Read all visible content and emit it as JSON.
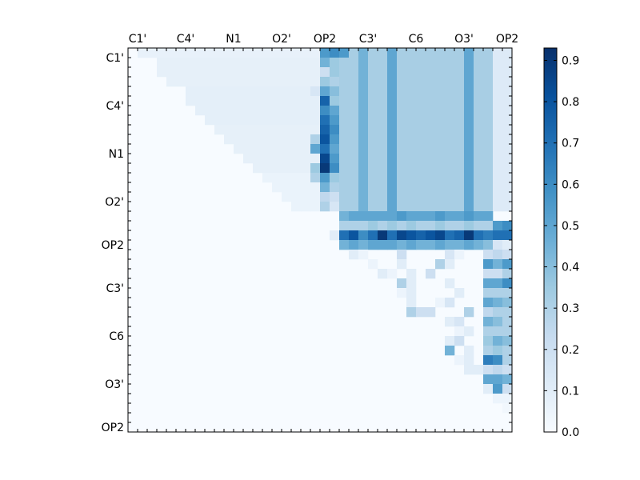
{
  "chart_data": {
    "type": "heatmap",
    "title": "",
    "xlabel": "",
    "ylabel": "",
    "n": 40,
    "x_tick_labels": [
      "C1'",
      "C4'",
      "N1",
      "O2'",
      "OP2",
      "C3'",
      "C6",
      "O3'",
      "OP2"
    ],
    "y_tick_labels": [
      "C1'",
      "C4'",
      "N1",
      "O2'",
      "OP2",
      "C3'",
      "C6",
      "O3'",
      "OP2"
    ],
    "x_label_positions": [
      0.5,
      5.5,
      10.5,
      15.5,
      20.0,
      24.5,
      29.5,
      34.5,
      39.0
    ],
    "y_label_positions": [
      0.5,
      5.5,
      10.5,
      15.5,
      20.0,
      24.5,
      29.5,
      34.5,
      39.0
    ],
    "colorbar": {
      "range": [
        0.0,
        0.93
      ],
      "ticks": [
        "0.0",
        "0.1",
        "0.2",
        "0.3",
        "0.4",
        "0.5",
        "0.6",
        "0.7",
        "0.8",
        "0.9"
      ],
      "colormap": "Blues"
    },
    "approximate_values_note": "Upper-triangular distance-correlation style matrix; values estimated from color.",
    "cells": [
      {
        "r": 0,
        "c": 20,
        "v": 0.55
      },
      {
        "r": 0,
        "c": 21,
        "v": 0.6
      },
      {
        "r": 0,
        "c": 22,
        "v": 0.55
      },
      {
        "r": 1,
        "c": 20,
        "v": 0.45
      },
      {
        "r": 1,
        "c": 21,
        "v": 0.35
      },
      {
        "r": 2,
        "c": 20,
        "v": 0.2
      },
      {
        "r": 2,
        "c": 21,
        "v": 0.35
      },
      {
        "r": 3,
        "c": 20,
        "v": 0.35
      },
      {
        "r": 3,
        "c": 21,
        "v": 0.3
      },
      {
        "r": 4,
        "c": 19,
        "v": 0.15
      },
      {
        "r": 4,
        "c": 20,
        "v": 0.5
      },
      {
        "r": 4,
        "c": 21,
        "v": 0.4
      },
      {
        "r": 5,
        "c": 20,
        "v": 0.75
      },
      {
        "r": 5,
        "c": 21,
        "v": 0.35
      },
      {
        "r": 6,
        "c": 20,
        "v": 0.6
      },
      {
        "r": 6,
        "c": 21,
        "v": 0.5
      },
      {
        "r": 7,
        "c": 20,
        "v": 0.7
      },
      {
        "r": 7,
        "c": 21,
        "v": 0.55
      },
      {
        "r": 8,
        "c": 20,
        "v": 0.75
      },
      {
        "r": 8,
        "c": 21,
        "v": 0.6
      },
      {
        "r": 9,
        "c": 19,
        "v": 0.3
      },
      {
        "r": 9,
        "c": 20,
        "v": 0.8
      },
      {
        "r": 9,
        "c": 21,
        "v": 0.55
      },
      {
        "r": 10,
        "c": 19,
        "v": 0.5
      },
      {
        "r": 10,
        "c": 20,
        "v": 0.7
      },
      {
        "r": 10,
        "c": 21,
        "v": 0.5
      },
      {
        "r": 11,
        "c": 20,
        "v": 0.85
      },
      {
        "r": 11,
        "c": 21,
        "v": 0.55
      },
      {
        "r": 12,
        "c": 19,
        "v": 0.35
      },
      {
        "r": 12,
        "c": 20,
        "v": 0.9
      },
      {
        "r": 12,
        "c": 21,
        "v": 0.6
      },
      {
        "r": 13,
        "c": 19,
        "v": 0.3
      },
      {
        "r": 13,
        "c": 20,
        "v": 0.55
      },
      {
        "r": 13,
        "c": 21,
        "v": 0.35
      },
      {
        "r": 14,
        "c": 20,
        "v": 0.45
      },
      {
        "r": 14,
        "c": 21,
        "v": 0.3
      },
      {
        "r": 15,
        "c": 20,
        "v": 0.25
      },
      {
        "r": 15,
        "c": 21,
        "v": 0.2
      },
      {
        "r": 16,
        "c": 20,
        "v": 0.3
      },
      {
        "r": 16,
        "c": 21,
        "v": 0.15
      },
      {
        "r": 17,
        "c": 22,
        "v": 0.45
      },
      {
        "r": 17,
        "c": 23,
        "v": 0.5
      },
      {
        "r": 17,
        "c": 24,
        "v": 0.5
      },
      {
        "r": 17,
        "c": 25,
        "v": 0.5
      },
      {
        "r": 17,
        "c": 26,
        "v": 0.5
      },
      {
        "r": 17,
        "c": 27,
        "v": 0.5
      },
      {
        "r": 17,
        "c": 28,
        "v": 0.55
      },
      {
        "r": 17,
        "c": 29,
        "v": 0.5
      },
      {
        "r": 17,
        "c": 30,
        "v": 0.5
      },
      {
        "r": 17,
        "c": 31,
        "v": 0.5
      },
      {
        "r": 17,
        "c": 32,
        "v": 0.55
      },
      {
        "r": 17,
        "c": 33,
        "v": 0.5
      },
      {
        "r": 17,
        "c": 34,
        "v": 0.5
      },
      {
        "r": 17,
        "c": 35,
        "v": 0.55
      },
      {
        "r": 17,
        "c": 36,
        "v": 0.5
      },
      {
        "r": 17,
        "c": 37,
        "v": 0.5
      },
      {
        "r": 18,
        "c": 22,
        "v": 0.3
      },
      {
        "r": 18,
        "c": 23,
        "v": 0.3
      },
      {
        "r": 18,
        "c": 24,
        "v": 0.3
      },
      {
        "r": 18,
        "c": 25,
        "v": 0.35
      },
      {
        "r": 18,
        "c": 26,
        "v": 0.3
      },
      {
        "r": 18,
        "c": 27,
        "v": 0.35
      },
      {
        "r": 18,
        "c": 28,
        "v": 0.3
      },
      {
        "r": 18,
        "c": 29,
        "v": 0.35
      },
      {
        "r": 18,
        "c": 30,
        "v": 0.3
      },
      {
        "r": 18,
        "c": 31,
        "v": 0.3
      },
      {
        "r": 18,
        "c": 32,
        "v": 0.35
      },
      {
        "r": 18,
        "c": 33,
        "v": 0.3
      },
      {
        "r": 18,
        "c": 34,
        "v": 0.3
      },
      {
        "r": 18,
        "c": 35,
        "v": 0.35
      },
      {
        "r": 18,
        "c": 36,
        "v": 0.3
      },
      {
        "r": 18,
        "c": 37,
        "v": 0.3
      },
      {
        "r": 18,
        "c": 38,
        "v": 0.55
      },
      {
        "r": 18,
        "c": 39,
        "v": 0.6
      },
      {
        "r": 19,
        "c": 21,
        "v": 0.1
      },
      {
        "r": 19,
        "c": 22,
        "v": 0.7
      },
      {
        "r": 19,
        "c": 23,
        "v": 0.8
      },
      {
        "r": 19,
        "c": 24,
        "v": 0.6
      },
      {
        "r": 19,
        "c": 25,
        "v": 0.7
      },
      {
        "r": 19,
        "c": 26,
        "v": 0.9
      },
      {
        "r": 19,
        "c": 27,
        "v": 0.7
      },
      {
        "r": 19,
        "c": 28,
        "v": 0.85
      },
      {
        "r": 19,
        "c": 29,
        "v": 0.8
      },
      {
        "r": 19,
        "c": 30,
        "v": 0.75
      },
      {
        "r": 19,
        "c": 31,
        "v": 0.8
      },
      {
        "r": 19,
        "c": 32,
        "v": 0.85
      },
      {
        "r": 19,
        "c": 33,
        "v": 0.7
      },
      {
        "r": 19,
        "c": 34,
        "v": 0.75
      },
      {
        "r": 19,
        "c": 35,
        "v": 0.9
      },
      {
        "r": 19,
        "c": 36,
        "v": 0.7
      },
      {
        "r": 19,
        "c": 37,
        "v": 0.65
      },
      {
        "r": 19,
        "c": 38,
        "v": 0.7
      },
      {
        "r": 19,
        "c": 39,
        "v": 0.7
      },
      {
        "r": 20,
        "c": 22,
        "v": 0.45
      },
      {
        "r": 20,
        "c": 23,
        "v": 0.5
      },
      {
        "r": 20,
        "c": 24,
        "v": 0.45
      },
      {
        "r": 20,
        "c": 25,
        "v": 0.5
      },
      {
        "r": 20,
        "c": 26,
        "v": 0.5
      },
      {
        "r": 20,
        "c": 27,
        "v": 0.5
      },
      {
        "r": 20,
        "c": 28,
        "v": 0.45
      },
      {
        "r": 20,
        "c": 29,
        "v": 0.5
      },
      {
        "r": 20,
        "c": 30,
        "v": 0.45
      },
      {
        "r": 20,
        "c": 31,
        "v": 0.45
      },
      {
        "r": 20,
        "c": 32,
        "v": 0.5
      },
      {
        "r": 20,
        "c": 33,
        "v": 0.45
      },
      {
        "r": 20,
        "c": 34,
        "v": 0.45
      },
      {
        "r": 20,
        "c": 35,
        "v": 0.5
      },
      {
        "r": 20,
        "c": 36,
        "v": 0.45
      },
      {
        "r": 20,
        "c": 37,
        "v": 0.4
      },
      {
        "r": 20,
        "c": 38,
        "v": 0.15
      },
      {
        "r": 20,
        "c": 39,
        "v": 0.1
      },
      {
        "r": 21,
        "c": 23,
        "v": 0.1
      },
      {
        "r": 21,
        "c": 24,
        "v": 0.05
      },
      {
        "r": 21,
        "c": 28,
        "v": 0.2
      },
      {
        "r": 21,
        "c": 33,
        "v": 0.15
      },
      {
        "r": 21,
        "c": 34,
        "v": 0.05
      },
      {
        "r": 21,
        "c": 37,
        "v": 0.2
      },
      {
        "r": 21,
        "c": 38,
        "v": 0.25
      },
      {
        "r": 21,
        "c": 39,
        "v": 0.2
      },
      {
        "r": 22,
        "c": 25,
        "v": 0.05
      },
      {
        "r": 22,
        "c": 28,
        "v": 0.1
      },
      {
        "r": 22,
        "c": 32,
        "v": 0.3
      },
      {
        "r": 22,
        "c": 33,
        "v": 0.1
      },
      {
        "r": 22,
        "c": 37,
        "v": 0.55
      },
      {
        "r": 22,
        "c": 38,
        "v": 0.45
      },
      {
        "r": 22,
        "c": 39,
        "v": 0.55
      },
      {
        "r": 23,
        "c": 26,
        "v": 0.1
      },
      {
        "r": 23,
        "c": 27,
        "v": 0.05
      },
      {
        "r": 23,
        "c": 29,
        "v": 0.1
      },
      {
        "r": 23,
        "c": 31,
        "v": 0.2
      },
      {
        "r": 23,
        "c": 37,
        "v": 0.2
      },
      {
        "r": 23,
        "c": 38,
        "v": 0.2
      },
      {
        "r": 23,
        "c": 39,
        "v": 0.3
      },
      {
        "r": 24,
        "c": 28,
        "v": 0.3
      },
      {
        "r": 24,
        "c": 29,
        "v": 0.1
      },
      {
        "r": 24,
        "c": 33,
        "v": 0.1
      },
      {
        "r": 24,
        "c": 37,
        "v": 0.5
      },
      {
        "r": 24,
        "c": 38,
        "v": 0.5
      },
      {
        "r": 24,
        "c": 39,
        "v": 0.6
      },
      {
        "r": 25,
        "c": 28,
        "v": 0.05
      },
      {
        "r": 25,
        "c": 29,
        "v": 0.1
      },
      {
        "r": 25,
        "c": 34,
        "v": 0.1
      },
      {
        "r": 25,
        "c": 37,
        "v": 0.3
      },
      {
        "r": 25,
        "c": 38,
        "v": 0.3
      },
      {
        "r": 25,
        "c": 39,
        "v": 0.3
      },
      {
        "r": 26,
        "c": 29,
        "v": 0.1
      },
      {
        "r": 26,
        "c": 32,
        "v": 0.05
      },
      {
        "r": 26,
        "c": 33,
        "v": 0.15
      },
      {
        "r": 26,
        "c": 37,
        "v": 0.5
      },
      {
        "r": 26,
        "c": 38,
        "v": 0.45
      },
      {
        "r": 26,
        "c": 39,
        "v": 0.4
      },
      {
        "r": 27,
        "c": 29,
        "v": 0.3
      },
      {
        "r": 27,
        "c": 30,
        "v": 0.2
      },
      {
        "r": 27,
        "c": 31,
        "v": 0.2
      },
      {
        "r": 27,
        "c": 35,
        "v": 0.3
      },
      {
        "r": 27,
        "c": 37,
        "v": 0.25
      },
      {
        "r": 27,
        "c": 38,
        "v": 0.3
      },
      {
        "r": 27,
        "c": 39,
        "v": 0.3
      },
      {
        "r": 28,
        "c": 33,
        "v": 0.1
      },
      {
        "r": 28,
        "c": 34,
        "v": 0.15
      },
      {
        "r": 28,
        "c": 37,
        "v": 0.45
      },
      {
        "r": 28,
        "c": 38,
        "v": 0.4
      },
      {
        "r": 28,
        "c": 39,
        "v": 0.3
      },
      {
        "r": 29,
        "c": 34,
        "v": 0.05
      },
      {
        "r": 29,
        "c": 35,
        "v": 0.1
      },
      {
        "r": 29,
        "c": 37,
        "v": 0.3
      },
      {
        "r": 29,
        "c": 38,
        "v": 0.3
      },
      {
        "r": 29,
        "c": 39,
        "v": 0.3
      },
      {
        "r": 30,
        "c": 33,
        "v": 0.1
      },
      {
        "r": 30,
        "c": 34,
        "v": 0.2
      },
      {
        "r": 30,
        "c": 37,
        "v": 0.35
      },
      {
        "r": 30,
        "c": 38,
        "v": 0.45
      },
      {
        "r": 30,
        "c": 39,
        "v": 0.4
      },
      {
        "r": 31,
        "c": 33,
        "v": 0.45
      },
      {
        "r": 31,
        "c": 35,
        "v": 0.1
      },
      {
        "r": 31,
        "c": 37,
        "v": 0.3
      },
      {
        "r": 31,
        "c": 38,
        "v": 0.35
      },
      {
        "r": 31,
        "c": 39,
        "v": 0.3
      },
      {
        "r": 32,
        "c": 34,
        "v": 0.05
      },
      {
        "r": 32,
        "c": 35,
        "v": 0.1
      },
      {
        "r": 32,
        "c": 37,
        "v": 0.65
      },
      {
        "r": 32,
        "c": 38,
        "v": 0.6
      },
      {
        "r": 32,
        "c": 39,
        "v": 0.3
      },
      {
        "r": 33,
        "c": 35,
        "v": 0.1
      },
      {
        "r": 33,
        "c": 36,
        "v": 0.1
      },
      {
        "r": 33,
        "c": 37,
        "v": 0.2
      },
      {
        "r": 33,
        "c": 38,
        "v": 0.25
      },
      {
        "r": 33,
        "c": 39,
        "v": 0.2
      },
      {
        "r": 34,
        "c": 37,
        "v": 0.5
      },
      {
        "r": 34,
        "c": 38,
        "v": 0.5
      },
      {
        "r": 34,
        "c": 39,
        "v": 0.45
      },
      {
        "r": 35,
        "c": 37,
        "v": 0.1
      },
      {
        "r": 35,
        "c": 38,
        "v": 0.55
      },
      {
        "r": 35,
        "c": 39,
        "v": 0.2
      },
      {
        "r": 36,
        "c": 38,
        "v": 0.05
      },
      {
        "r": 36,
        "c": 39,
        "v": 0.05
      },
      {
        "r": 37,
        "c": 39,
        "v": 0.03
      }
    ],
    "blocks": [
      {
        "r0": 0,
        "r1": 17,
        "c0": 22,
        "c1": 40,
        "v": 0.32
      },
      {
        "r0": 0,
        "r1": 17,
        "c0": 24,
        "c1": 25,
        "v": 0.45
      },
      {
        "r0": 0,
        "r1": 17,
        "c0": 27,
        "c1": 28,
        "v": 0.5
      },
      {
        "r0": 0,
        "r1": 17,
        "c0": 35,
        "c1": 36,
        "v": 0.5
      },
      {
        "r0": 0,
        "r1": 17,
        "c0": 38,
        "c1": 40,
        "v": 0.12
      }
    ],
    "upper_background": [
      {
        "r0": 0,
        "r1": 1,
        "c0": 1,
        "c1": 20,
        "v": 0.07
      },
      {
        "r0": 1,
        "r1": 4,
        "c0": 3,
        "c1": 20,
        "v": 0.08
      },
      {
        "r0": 4,
        "r1": 8,
        "c0": 6,
        "c1": 20,
        "v": 0.09
      },
      {
        "r0": 8,
        "r1": 13,
        "c0": 9,
        "c1": 20,
        "v": 0.08
      },
      {
        "r0": 13,
        "r1": 17,
        "c0": 14,
        "c1": 20,
        "v": 0.06
      }
    ]
  }
}
